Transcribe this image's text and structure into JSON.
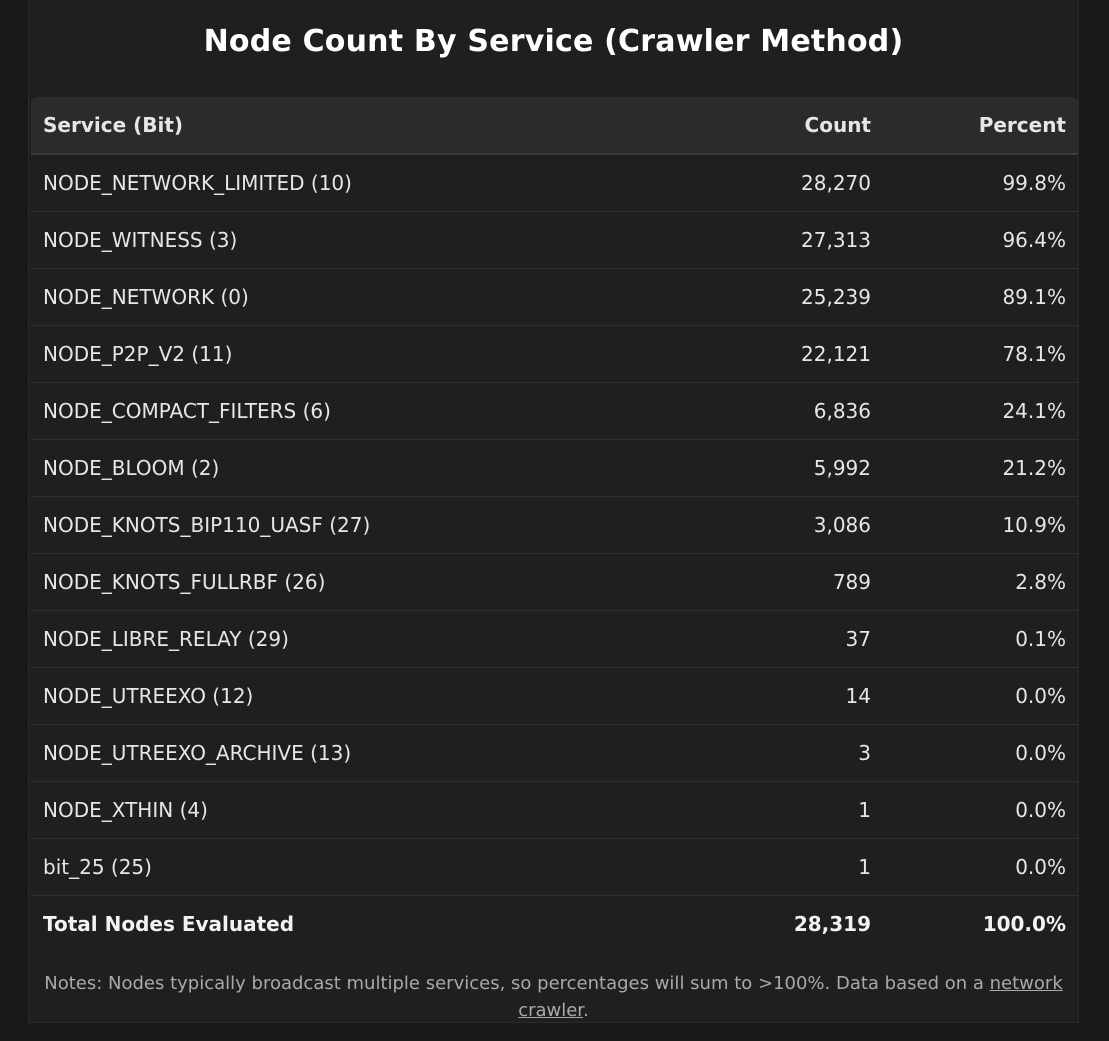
{
  "title": "Node Count By Service (Crawler Method)",
  "table": {
    "headers": {
      "service": "Service (Bit)",
      "count": "Count",
      "percent": "Percent"
    },
    "rows": [
      {
        "service": "NODE_NETWORK_LIMITED (10)",
        "count": "28,270",
        "percent": "99.8%"
      },
      {
        "service": "NODE_WITNESS (3)",
        "count": "27,313",
        "percent": "96.4%"
      },
      {
        "service": "NODE_NETWORK (0)",
        "count": "25,239",
        "percent": "89.1%"
      },
      {
        "service": "NODE_P2P_V2 (11)",
        "count": "22,121",
        "percent": "78.1%"
      },
      {
        "service": "NODE_COMPACT_FILTERS (6)",
        "count": "6,836",
        "percent": "24.1%"
      },
      {
        "service": "NODE_BLOOM (2)",
        "count": "5,992",
        "percent": "21.2%"
      },
      {
        "service": "NODE_KNOTS_BIP110_UASF (27)",
        "count": "3,086",
        "percent": "10.9%"
      },
      {
        "service": "NODE_KNOTS_FULLRBF (26)",
        "count": "789",
        "percent": "2.8%"
      },
      {
        "service": "NODE_LIBRE_RELAY (29)",
        "count": "37",
        "percent": "0.1%"
      },
      {
        "service": "NODE_UTREEXO (12)",
        "count": "14",
        "percent": "0.0%"
      },
      {
        "service": "NODE_UTREEXO_ARCHIVE (13)",
        "count": "3",
        "percent": "0.0%"
      },
      {
        "service": "NODE_XTHIN (4)",
        "count": "1",
        "percent": "0.0%"
      },
      {
        "service": "bit_25 (25)",
        "count": "1",
        "percent": "0.0%"
      }
    ],
    "total": {
      "service": "Total Nodes Evaluated",
      "count": "28,319",
      "percent": "100.0%"
    }
  },
  "notes": {
    "text": "Notes: Nodes typically broadcast multiple services, so percentages will sum to >100%. Data based on a ",
    "link_label": "network crawler",
    "suffix": "."
  }
}
